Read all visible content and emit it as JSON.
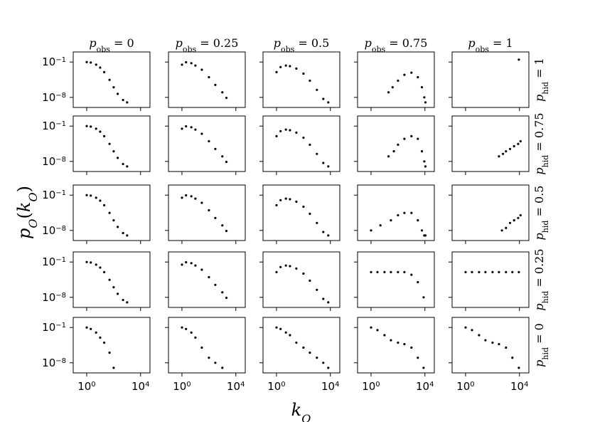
{
  "chart_data": {
    "type": "scatter",
    "layout": "grid",
    "grid": {
      "rows": 5,
      "cols": 5
    },
    "xscale": "log",
    "yscale": "log",
    "xlim": [
      0.1,
      50000
    ],
    "ylim": [
      1e-10,
      10
    ],
    "x_ticks": [
      {
        "value": 1,
        "base": "10",
        "exp": "0"
      },
      {
        "value": 10000,
        "base": "10",
        "exp": "4"
      }
    ],
    "y_ticks": [
      {
        "value": 0.1,
        "base": "10",
        "exp": "−1"
      },
      {
        "value": 1e-08,
        "base": "10",
        "exp": "−8"
      }
    ],
    "xlabel": {
      "base": "k",
      "sub": "O"
    },
    "ylabel": {
      "base": "p",
      "sub": "O",
      "arg": "k",
      "argsub": "O"
    },
    "col_headers": [
      {
        "base": "p",
        "sub": "obs",
        "value": "0"
      },
      {
        "base": "p",
        "sub": "obs",
        "value": "0.25"
      },
      {
        "base": "p",
        "sub": "obs",
        "value": "0.5"
      },
      {
        "base": "p",
        "sub": "obs",
        "value": "0.75"
      },
      {
        "base": "p",
        "sub": "obs",
        "value": "1"
      }
    ],
    "row_headers": [
      {
        "base": "p",
        "sub": "hid",
        "value": "1"
      },
      {
        "base": "p",
        "sub": "hid",
        "value": "0.75"
      },
      {
        "base": "p",
        "sub": "hid",
        "value": "0.5"
      },
      {
        "base": "p",
        "sub": "hid",
        "value": "0.25"
      },
      {
        "base": "p",
        "sub": "hid",
        "value": "0"
      }
    ],
    "marker_color": "#000000",
    "panels": [
      [
        {
          "row": 0,
          "col": 0,
          "x": [
            1,
            2,
            5,
            10,
            20,
            50,
            100,
            200,
            500,
            1000
          ],
          "y": [
            0.1,
            0.08,
            0.03,
            0.008,
            0.001,
            3e-05,
            1e-06,
            5e-08,
            3e-09,
            1e-09
          ]
        },
        {
          "row": 0,
          "col": 1,
          "x": [
            1,
            2,
            5,
            10,
            30,
            100,
            300,
            1000,
            2000
          ],
          "y": [
            0.03,
            0.09,
            0.06,
            0.02,
            0.003,
            0.0001,
            3e-06,
            1e-07,
            8e-09
          ]
        },
        {
          "row": 0,
          "col": 2,
          "x": [
            1,
            2,
            5,
            10,
            30,
            100,
            300,
            1000,
            3000,
            7000
          ],
          "y": [
            0.001,
            0.01,
            0.02,
            0.015,
            0.005,
            0.0005,
            2e-05,
            3e-07,
            5e-09,
            1e-09
          ]
        },
        {
          "row": 0,
          "col": 3,
          "x": [
            20,
            40,
            100,
            300,
            1000,
            3000,
            6000,
            9000,
            11000
          ],
          "y": [
            1e-07,
            1e-06,
            2e-05,
            0.0003,
            0.0008,
            0.0001,
            1e-06,
            1e-08,
            1e-09
          ]
        },
        {
          "row": 0,
          "col": 4,
          "x": [
            9000
          ],
          "y": [
            0.3
          ]
        }
      ],
      [
        {
          "row": 1,
          "col": 0,
          "x": [
            1,
            2,
            5,
            10,
            20,
            50,
            100,
            200,
            500,
            1000
          ],
          "y": [
            0.1,
            0.08,
            0.03,
            0.008,
            0.001,
            3e-05,
            1e-06,
            5e-08,
            3e-09,
            1e-09
          ]
        },
        {
          "row": 1,
          "col": 1,
          "x": [
            1,
            2,
            5,
            10,
            30,
            100,
            300,
            1000,
            2000
          ],
          "y": [
            0.03,
            0.09,
            0.06,
            0.02,
            0.003,
            0.0001,
            3e-06,
            1e-07,
            8e-09
          ]
        },
        {
          "row": 1,
          "col": 2,
          "x": [
            1,
            2,
            5,
            10,
            30,
            100,
            300,
            1000,
            3000,
            7000
          ],
          "y": [
            0.001,
            0.01,
            0.02,
            0.015,
            0.005,
            0.0005,
            2e-05,
            3e-07,
            5e-09,
            1e-09
          ]
        },
        {
          "row": 1,
          "col": 3,
          "x": [
            20,
            50,
            100,
            300,
            1000,
            3000,
            6000,
            9000,
            11000
          ],
          "y": [
            1e-07,
            1e-06,
            2e-05,
            0.0003,
            0.001,
            0.0003,
            1e-06,
            1e-08,
            1e-09
          ]
        },
        {
          "row": 1,
          "col": 4,
          "x": [
            300,
            600,
            1000,
            2000,
            4000,
            8000,
            12000
          ],
          "y": [
            1e-07,
            3e-07,
            1e-06,
            3e-06,
            1e-05,
            3e-05,
            0.0001
          ]
        }
      ],
      [
        {
          "row": 2,
          "col": 0,
          "x": [
            1,
            2,
            5,
            10,
            20,
            50,
            100,
            200,
            500,
            1000
          ],
          "y": [
            0.1,
            0.08,
            0.03,
            0.008,
            0.001,
            3e-05,
            1e-06,
            5e-08,
            3e-09,
            1e-09
          ]
        },
        {
          "row": 2,
          "col": 1,
          "x": [
            1,
            2,
            5,
            10,
            30,
            100,
            300,
            1000,
            2000
          ],
          "y": [
            0.03,
            0.09,
            0.06,
            0.02,
            0.003,
            0.0001,
            3e-06,
            1e-07,
            8e-09
          ]
        },
        {
          "row": 2,
          "col": 2,
          "x": [
            1,
            2,
            5,
            10,
            30,
            100,
            300,
            1000,
            3000,
            7000
          ],
          "y": [
            0.001,
            0.01,
            0.02,
            0.015,
            0.005,
            0.0005,
            2e-05,
            3e-07,
            5e-09,
            1e-09
          ]
        },
        {
          "row": 2,
          "col": 3,
          "x": [
            1,
            5,
            30,
            100,
            300,
            1000,
            3000,
            6000,
            9000,
            11000
          ],
          "y": [
            1e-08,
            1e-07,
            1e-06,
            1e-05,
            3e-05,
            3e-05,
            1e-06,
            1e-08,
            1e-09,
            1e-09
          ]
        },
        {
          "row": 2,
          "col": 4,
          "x": [
            500,
            1000,
            2000,
            4000,
            8000,
            12000
          ],
          "y": [
            1e-08,
            3e-08,
            3e-07,
            1e-06,
            3e-06,
            1e-05
          ]
        }
      ],
      [
        {
          "row": 3,
          "col": 0,
          "x": [
            1,
            2,
            5,
            10,
            20,
            50,
            100,
            200,
            500,
            1000
          ],
          "y": [
            0.1,
            0.08,
            0.03,
            0.008,
            0.001,
            3e-05,
            1e-06,
            5e-08,
            3e-09,
            1e-09
          ]
        },
        {
          "row": 3,
          "col": 1,
          "x": [
            1,
            2,
            5,
            10,
            30,
            100,
            300,
            1000,
            2000
          ],
          "y": [
            0.03,
            0.09,
            0.06,
            0.02,
            0.003,
            0.0001,
            3e-06,
            1e-07,
            8e-09
          ]
        },
        {
          "row": 3,
          "col": 2,
          "x": [
            1,
            2,
            5,
            10,
            30,
            100,
            300,
            1000,
            3000,
            7000
          ],
          "y": [
            0.001,
            0.01,
            0.02,
            0.015,
            0.005,
            0.0005,
            2e-05,
            3e-07,
            5e-09,
            1e-09
          ]
        },
        {
          "row": 3,
          "col": 3,
          "x": [
            1,
            3,
            10,
            30,
            100,
            300,
            1000,
            3000,
            8000
          ],
          "y": [
            0.001,
            0.001,
            0.001,
            0.001,
            0.001,
            0.001,
            0.0003,
            1e-05,
            1e-08
          ]
        },
        {
          "row": 3,
          "col": 4,
          "x": [
            1,
            3,
            10,
            30,
            100,
            300,
            1000,
            3000,
            9000
          ],
          "y": [
            0.001,
            0.001,
            0.001,
            0.001,
            0.001,
            0.001,
            0.001,
            0.001,
            0.001
          ]
        }
      ],
      [
        {
          "row": 4,
          "col": 0,
          "x": [
            1,
            2,
            5,
            10,
            20,
            50,
            100
          ],
          "y": [
            0.1,
            0.05,
            0.01,
            0.001,
            0.0001,
            1e-06,
            1e-09
          ]
        },
        {
          "row": 4,
          "col": 1,
          "x": [
            1,
            2,
            5,
            10,
            30,
            100,
            300,
            1000
          ],
          "y": [
            0.1,
            0.05,
            0.01,
            0.001,
            1e-05,
            1e-07,
            1e-08,
            1e-09
          ]
        },
        {
          "row": 4,
          "col": 2,
          "x": [
            1,
            2,
            5,
            10,
            30,
            100,
            300,
            1000,
            3000,
            7000
          ],
          "y": [
            0.1,
            0.05,
            0.01,
            0.003,
            0.0001,
            1e-05,
            1e-06,
            1e-07,
            1e-08,
            1e-09
          ]
        },
        {
          "row": 4,
          "col": 3,
          "x": [
            1,
            3,
            10,
            30,
            100,
            300,
            1000,
            3000,
            8000
          ],
          "y": [
            0.1,
            0.03,
            0.003,
            0.0003,
            0.0001,
            5e-05,
            1e-05,
            1e-07,
            1e-09
          ]
        },
        {
          "row": 4,
          "col": 4,
          "x": [
            1,
            3,
            10,
            30,
            100,
            300,
            1000,
            3000,
            9000
          ],
          "y": [
            0.1,
            0.03,
            0.003,
            0.0003,
            0.0001,
            5e-05,
            1e-05,
            1e-07,
            1e-09
          ]
        }
      ]
    ]
  }
}
